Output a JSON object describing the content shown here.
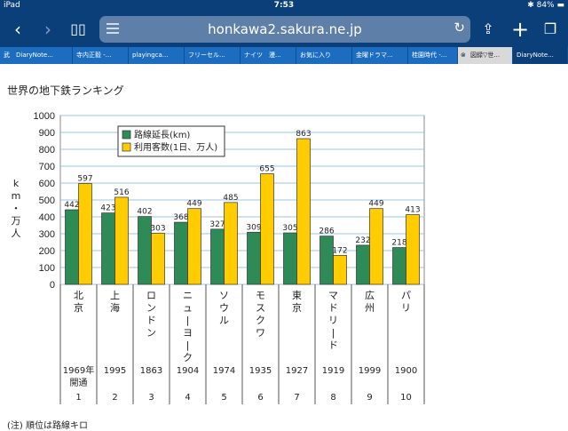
{
  "status": {
    "device": "iPad",
    "time": "7:53",
    "battery": "84%"
  },
  "browser": {
    "url": "honkawa2.sakura.ne.jp"
  },
  "tabs": [
    {
      "label": "武　DiaryNote..."
    },
    {
      "label": "寺内正毅 -..."
    },
    {
      "label": "playingca..."
    },
    {
      "label": "フリーセル..."
    },
    {
      "label": "ナイツ　漫..."
    },
    {
      "label": "お気に入り"
    },
    {
      "label": "金曜ドラマ..."
    },
    {
      "label": "桂園時代 -..."
    },
    {
      "label": "図録▽世..."
    },
    {
      "label": "DiaryNote..."
    }
  ],
  "page": {
    "title": "世界の地下鉄ランキング",
    "footnote": "(注) 順位は路線キロ"
  },
  "chart_data": {
    "type": "bar",
    "title": "",
    "ylabel": "km・万人",
    "ylim": [
      0,
      1000
    ],
    "yticks": [
      "0",
      "100",
      "200",
      "300",
      "400",
      "500",
      "600",
      "700",
      "800",
      "900",
      "1000"
    ],
    "grid": true,
    "legend_position": "top-left",
    "categories": [
      "北京",
      "上海",
      "ロンドン",
      "ニューヨーク",
      "ソウル",
      "モスクワ",
      "東京",
      "マドリード",
      "広州",
      "パリ"
    ],
    "opened": [
      "1969年開通",
      "1995",
      "1863",
      "1904",
      "1974",
      "1935",
      "1927",
      "1919",
      "1999",
      "1900"
    ],
    "ranks": [
      "1",
      "2",
      "3",
      "4",
      "5",
      "6",
      "7",
      "8",
      "9",
      "10"
    ],
    "series": [
      {
        "name": "路線延長(km)",
        "color": "#2e8b57",
        "values": [
          442,
          423,
          402,
          368,
          327,
          309,
          305,
          286,
          232,
          218
        ]
      },
      {
        "name": "利用客数(1日、万人)",
        "color": "#ffcc00",
        "values": [
          597,
          516,
          303,
          449,
          485,
          655,
          863,
          172,
          449,
          413
        ]
      }
    ]
  }
}
